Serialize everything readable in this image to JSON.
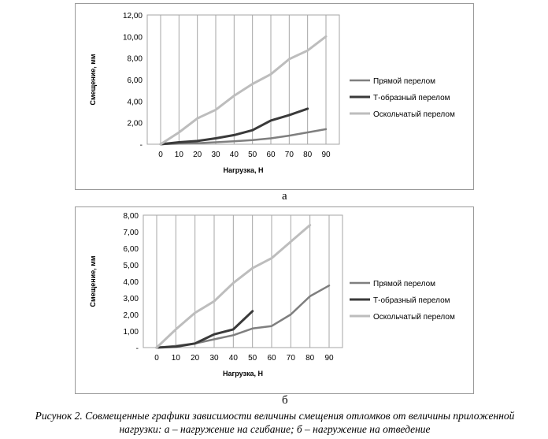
{
  "chart_data": [
    {
      "type": "line",
      "panel_label": "а",
      "xlabel": "Нагрузка, Н",
      "ylabel": "Смещение, мм",
      "x": [
        0,
        10,
        20,
        30,
        40,
        50,
        60,
        70,
        80,
        90
      ],
      "x_tick_labels": [
        "0",
        "10",
        "20",
        "30",
        "40",
        "50",
        "60",
        "70",
        "80",
        "90"
      ],
      "y_tick_labels": [
        "-",
        "2,00",
        "4,00",
        "6,00",
        "8,00",
        "10,00",
        "12,00"
      ],
      "ylim": [
        0,
        12
      ],
      "grid": "vertical",
      "legend_position": "right",
      "series": [
        {
          "name": "Прямой перелом",
          "color": "#7f7f7f",
          "width": 2.5,
          "values": [
            0,
            0.05,
            0.1,
            0.18,
            0.28,
            0.38,
            0.55,
            0.8,
            1.1,
            1.4
          ]
        },
        {
          "name": "Т-образный перелом",
          "color": "#3a3a3a",
          "width": 3,
          "values": [
            0,
            0.18,
            0.3,
            0.55,
            0.85,
            1.3,
            2.2,
            2.7,
            3.3,
            null
          ]
        },
        {
          "name": "Оскольчатый перелом",
          "color": "#bdbdbd",
          "width": 3,
          "values": [
            0,
            1.1,
            2.4,
            3.2,
            4.5,
            5.6,
            6.5,
            7.9,
            8.7,
            10.0
          ]
        }
      ]
    },
    {
      "type": "line",
      "panel_label": "б",
      "xlabel": "Нагрузка, Н",
      "ylabel": "Смещение, мм",
      "x": [
        0,
        10,
        20,
        30,
        40,
        50,
        60,
        70,
        80,
        90
      ],
      "x_tick_labels": [
        "0",
        "10",
        "20",
        "30",
        "40",
        "50",
        "60",
        "70",
        "80",
        "90"
      ],
      "y_tick_labels": [
        "-",
        "1,00",
        "2,00",
        "3,00",
        "4,00",
        "5,00",
        "6,00",
        "7,00",
        "8,00"
      ],
      "ylim": [
        0,
        8
      ],
      "grid": "vertical",
      "legend_position": "right",
      "series": [
        {
          "name": "Прямой перелом",
          "color": "#7f7f7f",
          "width": 2.5,
          "values": [
            0,
            0.1,
            0.25,
            0.5,
            0.75,
            1.15,
            1.3,
            2.0,
            3.1,
            3.75
          ]
        },
        {
          "name": "Т-образный перелом",
          "color": "#3a3a3a",
          "width": 3,
          "values": [
            0,
            0.05,
            0.25,
            0.8,
            1.1,
            2.2,
            null,
            null,
            null,
            null
          ]
        },
        {
          "name": "Оскольчатый перелом",
          "color": "#bdbdbd",
          "width": 3,
          "values": [
            0,
            1.1,
            2.1,
            2.8,
            3.9,
            4.8,
            5.4,
            6.4,
            7.4,
            null
          ]
        }
      ]
    }
  ],
  "caption": {
    "line1": "Рисунок 2. Совмещенные графики зависимости величины смещения отломков от величины приложенной",
    "line2": "нагрузки: а – нагружение на сгибание; б – нагружение на отведение"
  }
}
